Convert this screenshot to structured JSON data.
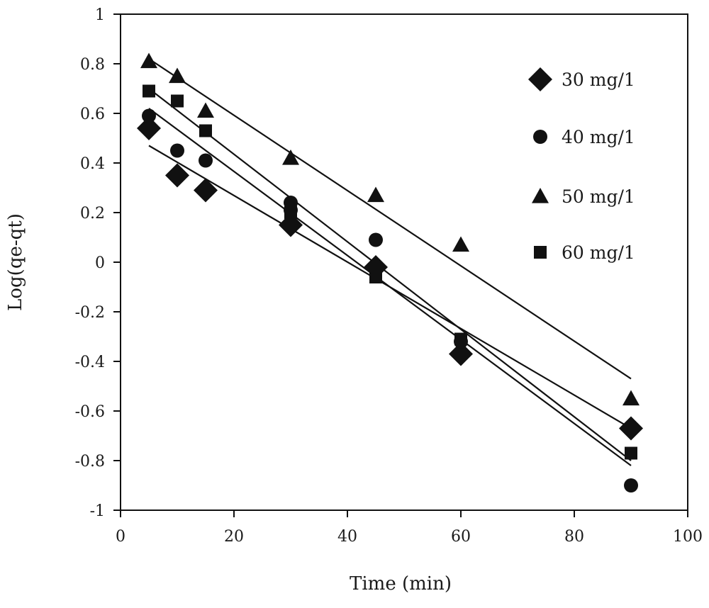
{
  "chart_data": {
    "type": "scatter",
    "xlabel": "Time (min)",
    "ylabel": "Log(qe-qt)",
    "xlim": [
      0,
      100
    ],
    "ylim": [
      -1,
      1
    ],
    "x_ticks": [
      0,
      20,
      40,
      60,
      80,
      100
    ],
    "y_ticks": [
      1,
      0.8,
      0.6,
      0.4,
      0.2,
      0,
      -0.2,
      -0.4,
      -0.6,
      -0.8,
      -1
    ],
    "x_tick_labels": [
      "0",
      "20",
      "40",
      "60",
      "80",
      "100"
    ],
    "y_tick_labels": [
      "1",
      "0.8",
      "0.6",
      "0.4",
      "0.2",
      "0",
      "-0.2",
      "-0.4",
      "-0.6",
      "-0.8",
      "-1"
    ],
    "grid": false,
    "legend_position": "right",
    "series": [
      {
        "name": "30 mg/1",
        "marker": "diamond",
        "points": [
          [
            5,
            0.54
          ],
          [
            10,
            0.35
          ],
          [
            15,
            0.29
          ],
          [
            30,
            0.15
          ],
          [
            45,
            -0.02
          ],
          [
            60,
            -0.37
          ],
          [
            90,
            -0.67
          ]
        ],
        "fit_line": [
          [
            5,
            0.47
          ],
          [
            90,
            -0.67
          ]
        ]
      },
      {
        "name": "40 mg/1",
        "marker": "circle",
        "points": [
          [
            5,
            0.59
          ],
          [
            10,
            0.45
          ],
          [
            15,
            0.41
          ],
          [
            30,
            0.24
          ],
          [
            30,
            0.21
          ],
          [
            45,
            0.09
          ],
          [
            60,
            -0.32
          ],
          [
            90,
            -0.9
          ]
        ],
        "fit_line": [
          [
            5,
            0.62
          ],
          [
            90,
            -0.82
          ]
        ]
      },
      {
        "name": "50 mg/1",
        "marker": "triangle",
        "points": [
          [
            5,
            0.81
          ],
          [
            10,
            0.75
          ],
          [
            15,
            0.61
          ],
          [
            30,
            0.42
          ],
          [
            45,
            0.27
          ],
          [
            60,
            0.07
          ],
          [
            90,
            -0.55
          ]
        ],
        "fit_line": [
          [
            5,
            0.82
          ],
          [
            90,
            -0.47
          ]
        ]
      },
      {
        "name": "60 mg/1",
        "marker": "square",
        "points": [
          [
            5,
            0.69
          ],
          [
            10,
            0.65
          ],
          [
            15,
            0.53
          ],
          [
            30,
            0.2
          ],
          [
            45,
            -0.06
          ],
          [
            60,
            -0.31
          ],
          [
            90,
            -0.77
          ]
        ],
        "fit_line": [
          [
            5,
            0.7
          ],
          [
            90,
            -0.8
          ]
        ]
      }
    ]
  }
}
